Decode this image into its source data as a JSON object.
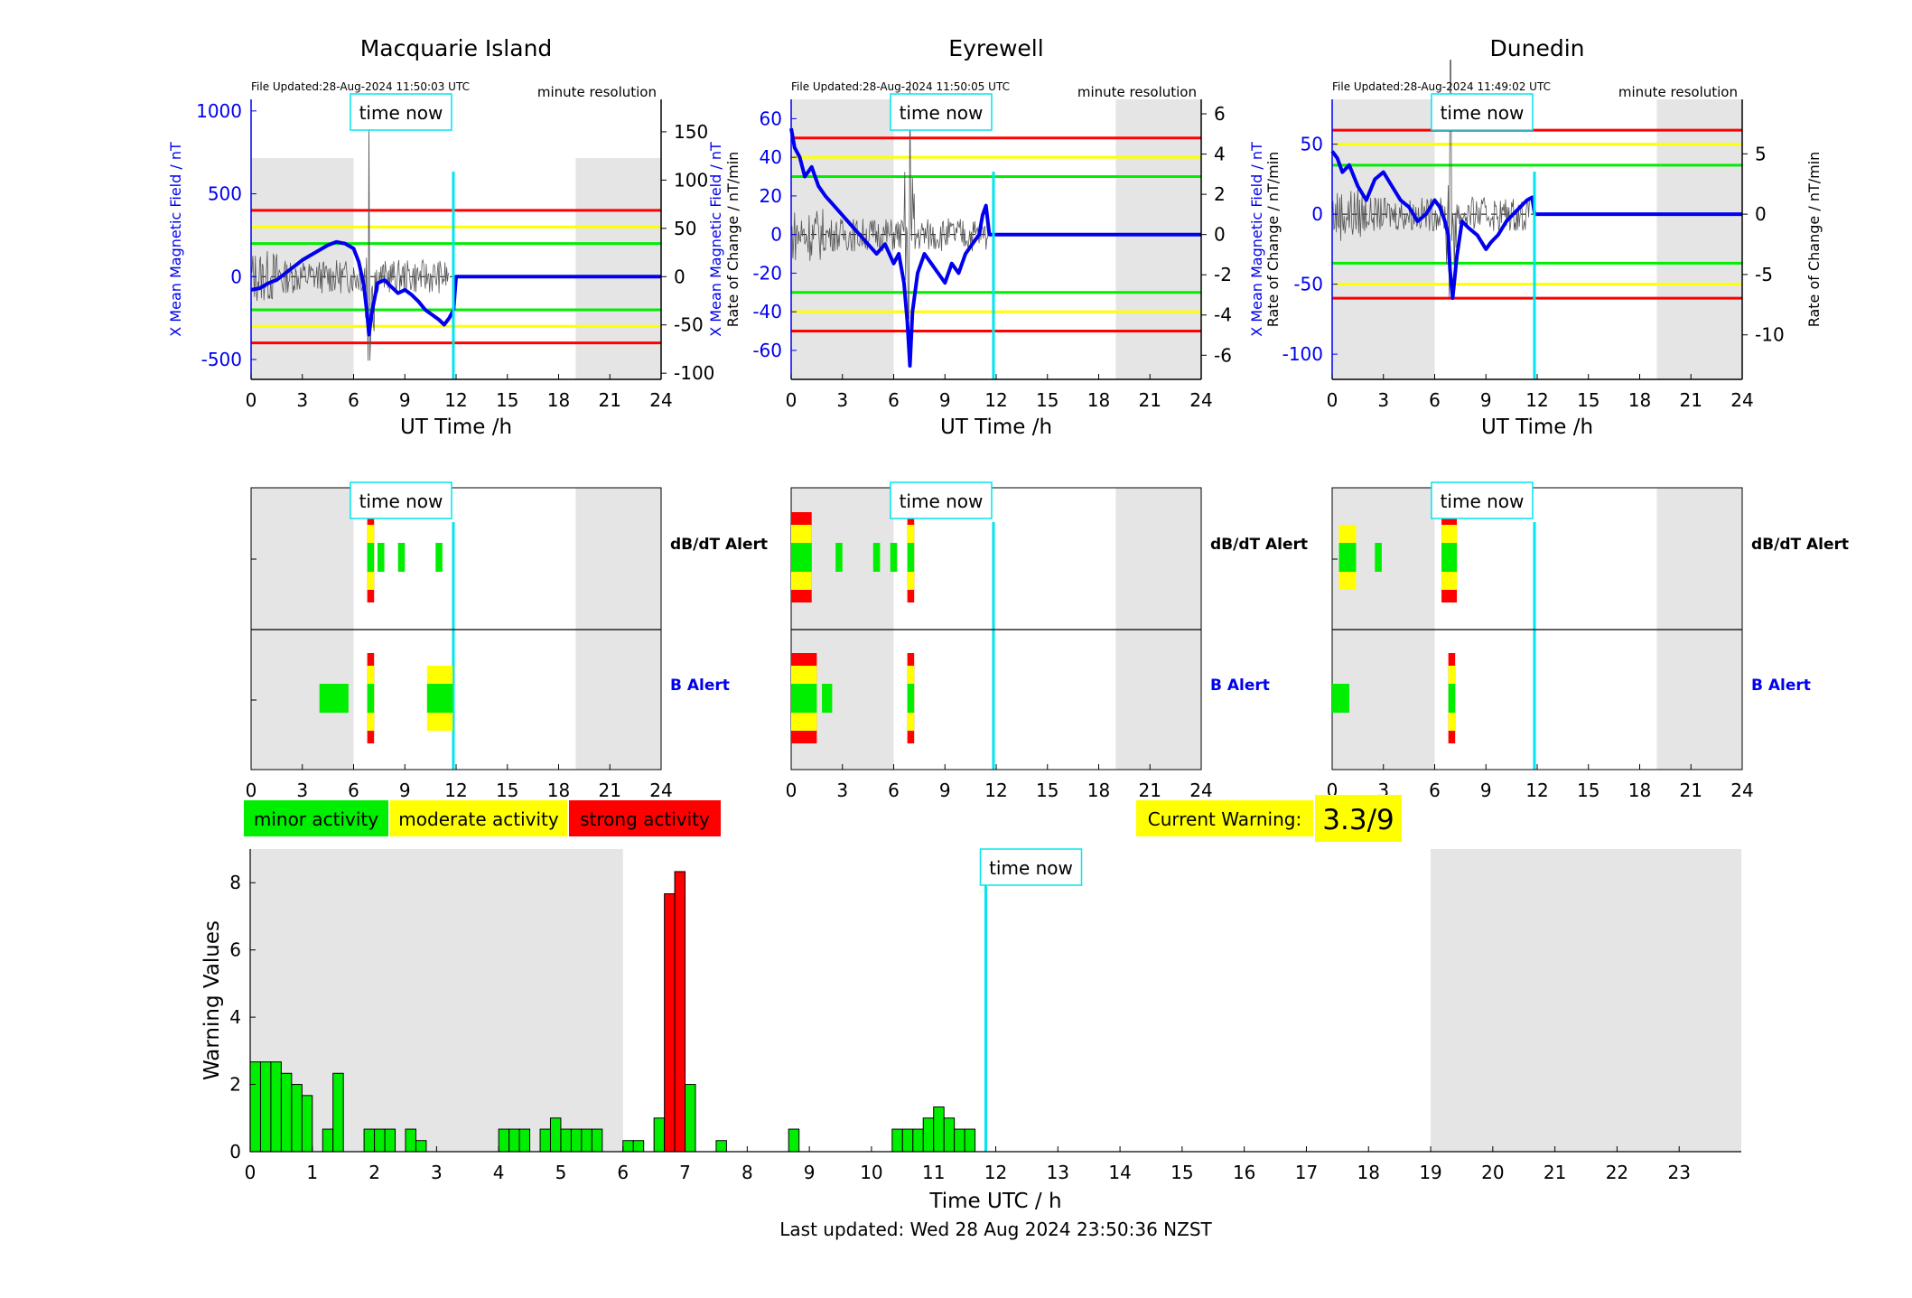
{
  "stations": [
    {
      "name": "Macquarie Island",
      "file_updated": "File Updated:28-Aug-2024 11:50:03 UTC",
      "resolution": "minute resolution",
      "left_ylabel": "X Mean Magnetic Field / nT",
      "right_ylabel": "Rate of Change / nT/min",
      "left_ylim": [
        -620,
        1070
      ],
      "left_ticks": [
        -500,
        0,
        500,
        1000
      ],
      "right_ticks": [
        -100,
        -50,
        0,
        50,
        100,
        150
      ],
      "thresholds_B": {
        "red": 400,
        "yellow": 300,
        "green": 200
      },
      "mean_trace_x": [
        0,
        0.5,
        1,
        1.5,
        2,
        2.5,
        3,
        3.5,
        4,
        4.5,
        5,
        5.5,
        6,
        6.3,
        6.6,
        6.8,
        6.9,
        7.1,
        7.4,
        7.8,
        8.2,
        8.6,
        9,
        9.4,
        9.8,
        10.2,
        10.6,
        11,
        11.3,
        11.6,
        11.85,
        12,
        24
      ],
      "mean_trace_y": [
        -80,
        -70,
        -40,
        -20,
        20,
        60,
        100,
        130,
        160,
        190,
        210,
        200,
        170,
        90,
        -50,
        -230,
        -350,
        -200,
        -40,
        -20,
        -60,
        -100,
        -80,
        -110,
        -150,
        -200,
        -230,
        -260,
        -290,
        -250,
        -200,
        0,
        0
      ],
      "dbdt_alert": [
        {
          "t": 7.0,
          "level": "red"
        },
        {
          "t": 7.6,
          "level": "green"
        },
        {
          "t": 8.8,
          "level": "green"
        },
        {
          "t": 11.0,
          "level": "green"
        }
      ],
      "b_alert": [
        {
          "t0": 4.0,
          "t1": 5.7,
          "level": "green"
        },
        {
          "t": 7.0,
          "level": "red"
        },
        {
          "t0": 10.3,
          "t1": 11.8,
          "level": "yellow"
        }
      ]
    },
    {
      "name": "Eyrewell",
      "file_updated": "File Updated:28-Aug-2024 11:50:05 UTC",
      "resolution": "minute resolution",
      "left_ylabel": "X Mean Magnetic Field / nT",
      "right_ylabel": "Rate of Change / nT/min",
      "left_ylim": [
        -75,
        70
      ],
      "left_ticks": [
        -60,
        -40,
        -20,
        0,
        20,
        40,
        60
      ],
      "right_ticks": [
        -6,
        -4,
        -2,
        0,
        2,
        4,
        6
      ],
      "thresholds_B": {
        "red": 50,
        "yellow": 40,
        "green": 30
      },
      "mean_trace_x": [
        0,
        0.2,
        0.5,
        0.8,
        1.2,
        1.6,
        2.0,
        2.5,
        3,
        3.5,
        4,
        4.5,
        5,
        5.5,
        6,
        6.3,
        6.6,
        6.8,
        6.95,
        7.1,
        7.4,
        7.8,
        8.2,
        8.6,
        9,
        9.4,
        9.8,
        10.2,
        10.6,
        11,
        11.2,
        11.4,
        11.6,
        24
      ],
      "mean_trace_y": [
        55,
        45,
        40,
        30,
        35,
        25,
        20,
        15,
        10,
        5,
        0,
        -5,
        -10,
        -5,
        -15,
        -10,
        -25,
        -45,
        -68,
        -40,
        -20,
        -10,
        -15,
        -20,
        -25,
        -15,
        -20,
        -10,
        -5,
        0,
        10,
        15,
        0,
        0
      ],
      "dbdt_alert": [
        {
          "t0": 0.0,
          "t1": 1.2,
          "level": "red"
        },
        {
          "t": 2.8,
          "level": "green"
        },
        {
          "t": 5.0,
          "level": "green"
        },
        {
          "t": 6.0,
          "level": "green"
        },
        {
          "t": 7.0,
          "level": "red"
        }
      ],
      "b_alert": [
        {
          "t0": 0.0,
          "t1": 1.5,
          "level": "red"
        },
        {
          "t0": 1.8,
          "t1": 2.4,
          "level": "green"
        },
        {
          "t": 7.0,
          "level": "red"
        }
      ]
    },
    {
      "name": "Dunedin",
      "file_updated": "File Updated:28-Aug-2024 11:49:02 UTC",
      "resolution": "minute resolution",
      "left_ylabel": "X Mean Magnetic Field / nT",
      "right_ylabel": "Rate of Change / nT/min",
      "left_ylim": [
        -118,
        82
      ],
      "left_ticks": [
        -100,
        -50,
        0,
        50
      ],
      "right_ticks": [
        -10,
        -5,
        0,
        5
      ],
      "thresholds_B": {
        "red": 60,
        "yellow": 50,
        "green": 35
      },
      "mean_trace_x": [
        0,
        0.3,
        0.6,
        1.0,
        1.5,
        2.0,
        2.5,
        3,
        3.5,
        4,
        4.5,
        5,
        5.5,
        6,
        6.3,
        6.6,
        6.8,
        6.9,
        7.05,
        7.3,
        7.6,
        8.0,
        8.5,
        9,
        9.3,
        9.7,
        10.2,
        10.6,
        11,
        11.4,
        11.7,
        11.85,
        24
      ],
      "mean_trace_y": [
        45,
        40,
        30,
        35,
        20,
        10,
        25,
        30,
        20,
        10,
        5,
        -5,
        0,
        10,
        5,
        -5,
        -15,
        -40,
        -60,
        -30,
        -5,
        -10,
        -15,
        -25,
        -20,
        -15,
        -5,
        0,
        5,
        10,
        12,
        0,
        0
      ],
      "dbdt_alert": [
        {
          "t0": 0.4,
          "t1": 1.4,
          "level": "yellow"
        },
        {
          "t": 2.7,
          "level": "green"
        },
        {
          "t0": 6.4,
          "t1": 7.3,
          "level": "red"
        }
      ],
      "b_alert": [
        {
          "t0": 0.0,
          "t1": 1.0,
          "level": "green"
        },
        {
          "t": 7.0,
          "level": "red"
        }
      ]
    }
  ],
  "labels": {
    "time_now": "time now",
    "ut_time": "UT Time /h",
    "dbdt_alert": "dB/dT Alert",
    "b_alert": "B Alert",
    "minor": "minor activity",
    "moderate": "moderate activity",
    "strong": "strong activity",
    "current_warning_label": "Current Warning:",
    "current_warning_value": "3.3/9",
    "last_updated": "Last updated: Wed 28 Aug 2024 23:50:36 NZST"
  },
  "colors": {
    "minor": "#00ee00",
    "moderate": "#ffff00",
    "strong": "#ff0000",
    "now": "#00e5ee",
    "night": "#e5e5e5",
    "mean_trace": "#0000ee",
    "roc_trace": "#555555"
  },
  "time_axis": {
    "xlim": [
      0,
      24
    ],
    "ticks": [
      0,
      3,
      6,
      9,
      12,
      15,
      18,
      21,
      24
    ],
    "night_before": 6,
    "night_after": 19,
    "now": 11.84
  },
  "chart_data": {
    "type": "bar",
    "xlabel": "Time UTC / h",
    "ylabel": "Warning Values",
    "xlim": [
      0,
      24
    ],
    "ylim": [
      0,
      9
    ],
    "x_ticks": [
      0,
      1,
      2,
      3,
      4,
      5,
      6,
      7,
      8,
      9,
      10,
      11,
      12,
      13,
      14,
      15,
      16,
      17,
      18,
      19,
      20,
      21,
      22,
      23
    ],
    "y_ticks": [
      0,
      2,
      4,
      6,
      8
    ],
    "night_before": 6,
    "night_after": 19,
    "now": 11.84,
    "bin_width": 0.1667,
    "bars": [
      {
        "t": 0.0,
        "v": 2.67,
        "level": "minor"
      },
      {
        "t": 0.167,
        "v": 2.67,
        "level": "minor"
      },
      {
        "t": 0.333,
        "v": 2.67,
        "level": "minor"
      },
      {
        "t": 0.5,
        "v": 2.33,
        "level": "minor"
      },
      {
        "t": 0.667,
        "v": 2.0,
        "level": "minor"
      },
      {
        "t": 0.833,
        "v": 1.67,
        "level": "minor"
      },
      {
        "t": 1.167,
        "v": 0.67,
        "level": "minor"
      },
      {
        "t": 1.333,
        "v": 2.33,
        "level": "minor"
      },
      {
        "t": 1.833,
        "v": 0.67,
        "level": "minor"
      },
      {
        "t": 2.0,
        "v": 0.67,
        "level": "minor"
      },
      {
        "t": 2.167,
        "v": 0.67,
        "level": "minor"
      },
      {
        "t": 2.5,
        "v": 0.67,
        "level": "minor"
      },
      {
        "t": 2.667,
        "v": 0.33,
        "level": "minor"
      },
      {
        "t": 4.0,
        "v": 0.67,
        "level": "minor"
      },
      {
        "t": 4.167,
        "v": 0.67,
        "level": "minor"
      },
      {
        "t": 4.333,
        "v": 0.67,
        "level": "minor"
      },
      {
        "t": 4.667,
        "v": 0.67,
        "level": "minor"
      },
      {
        "t": 4.833,
        "v": 1.0,
        "level": "minor"
      },
      {
        "t": 5.0,
        "v": 0.67,
        "level": "minor"
      },
      {
        "t": 5.167,
        "v": 0.67,
        "level": "minor"
      },
      {
        "t": 5.333,
        "v": 0.67,
        "level": "minor"
      },
      {
        "t": 5.5,
        "v": 0.67,
        "level": "minor"
      },
      {
        "t": 6.0,
        "v": 0.33,
        "level": "minor"
      },
      {
        "t": 6.167,
        "v": 0.33,
        "level": "minor"
      },
      {
        "t": 6.5,
        "v": 1.0,
        "level": "minor"
      },
      {
        "t": 6.667,
        "v": 7.67,
        "level": "strong"
      },
      {
        "t": 6.833,
        "v": 8.33,
        "level": "strong"
      },
      {
        "t": 7.0,
        "v": 2.0,
        "level": "minor"
      },
      {
        "t": 7.5,
        "v": 0.33,
        "level": "minor"
      },
      {
        "t": 8.667,
        "v": 0.67,
        "level": "minor"
      },
      {
        "t": 10.333,
        "v": 0.67,
        "level": "minor"
      },
      {
        "t": 10.5,
        "v": 0.67,
        "level": "minor"
      },
      {
        "t": 10.667,
        "v": 0.67,
        "level": "minor"
      },
      {
        "t": 10.833,
        "v": 1.0,
        "level": "minor"
      },
      {
        "t": 11.0,
        "v": 1.33,
        "level": "minor"
      },
      {
        "t": 11.167,
        "v": 1.0,
        "level": "minor"
      },
      {
        "t": 11.333,
        "v": 0.67,
        "level": "minor"
      },
      {
        "t": 11.5,
        "v": 0.67,
        "level": "minor"
      }
    ]
  }
}
